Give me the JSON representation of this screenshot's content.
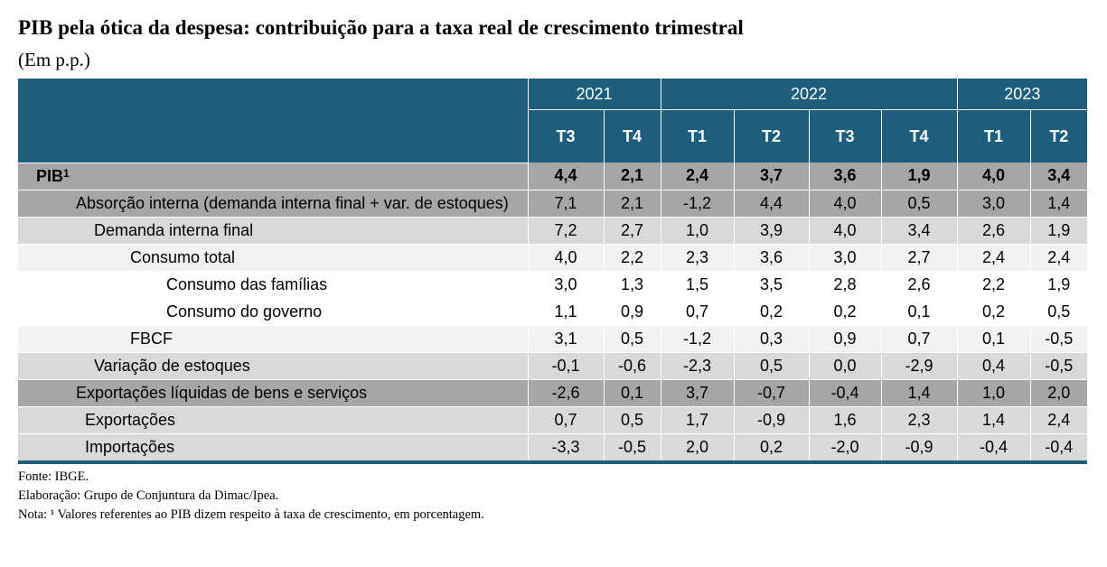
{
  "title": "PIB pela ótica da despesa: contribuição para a taxa real de crescimento trimestral",
  "subtitle": "(Em p.p.)",
  "years": [
    "2021",
    "2022",
    "2023"
  ],
  "quarters": [
    "T3",
    "T4",
    "T1",
    "T2",
    "T3",
    "T4",
    "T1",
    "T2"
  ],
  "rows": [
    {
      "label": "PIB",
      "sup": "1",
      "values": [
        "4,4",
        "2,1",
        "2,4",
        "3,7",
        "3,6",
        "1,9",
        "4,0",
        "3,4"
      ]
    },
    {
      "label": "Absorção interna (demanda interna final + var. de estoques)",
      "values": [
        "7,1",
        "2,1",
        "-1,2",
        "4,4",
        "4,0",
        "0,5",
        "3,0",
        "1,4"
      ]
    },
    {
      "label": "Demanda interna final",
      "values": [
        "7,2",
        "2,7",
        "1,0",
        "3,9",
        "4,0",
        "3,4",
        "2,6",
        "1,9"
      ]
    },
    {
      "label": "Consumo total",
      "values": [
        "4,0",
        "2,2",
        "2,3",
        "3,6",
        "3,0",
        "2,7",
        "2,4",
        "2,4"
      ]
    },
    {
      "label": "Consumo das famílias",
      "values": [
        "3,0",
        "1,3",
        "1,5",
        "3,5",
        "2,8",
        "2,6",
        "2,2",
        "1,9"
      ]
    },
    {
      "label": "Consumo do governo",
      "values": [
        "1,1",
        "0,9",
        "0,7",
        "0,2",
        "0,2",
        "0,1",
        "0,2",
        "0,5"
      ]
    },
    {
      "label": "FBCF",
      "values": [
        "3,1",
        "0,5",
        "-1,2",
        "0,3",
        "0,9",
        "0,7",
        "0,1",
        "-0,5"
      ]
    },
    {
      "label": "Variação de estoques",
      "values": [
        "-0,1",
        "-0,6",
        "-2,3",
        "0,5",
        "0,0",
        "-2,9",
        "0,4",
        "-0,5"
      ]
    },
    {
      "label": "Exportações líquidas de bens e serviços",
      "values": [
        "-2,6",
        "0,1",
        "3,7",
        "-0,7",
        "-0,4",
        "1,4",
        "1,0",
        "2,0"
      ]
    },
    {
      "label": "Exportações",
      "values": [
        "0,7",
        "0,5",
        "1,7",
        "-0,9",
        "1,6",
        "2,3",
        "1,4",
        "2,4"
      ]
    },
    {
      "label": "Importações",
      "values": [
        "-3,3",
        "-0,5",
        "2,0",
        "0,2",
        "-2,0",
        "-0,9",
        "-0,4",
        "-0,4"
      ]
    }
  ],
  "notes": {
    "source": "Fonte: IBGE.",
    "elaboration": "Elaboração: Grupo de Conjuntura da Dimac/Ipea.",
    "note": "Nota: ¹ Valores referentes ao PIB dizem respeito à taxa de crescimento, em porcentagem."
  },
  "colors": {
    "header": "#1c5e7c",
    "row_dark": "#a6a6a6",
    "row_mid": "#d9d9d9",
    "row_light": "#f2f2f2"
  }
}
